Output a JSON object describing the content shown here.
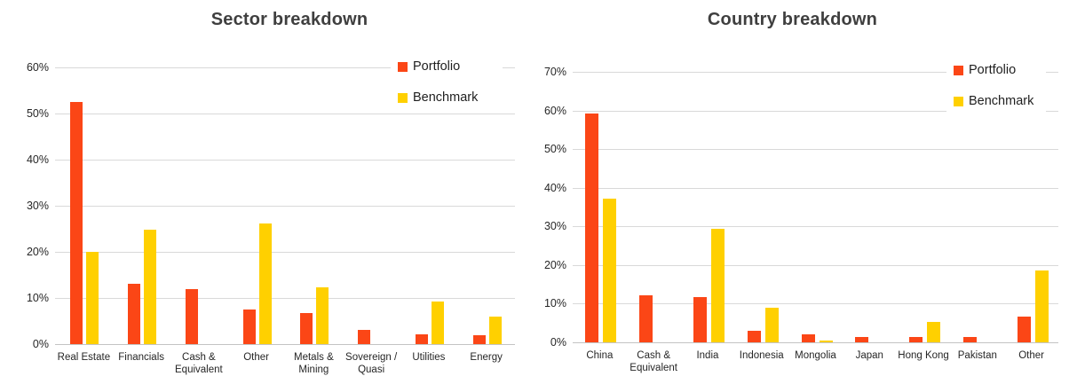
{
  "theme": {
    "background": "#ffffff",
    "grid_color": "#d9d9d9",
    "axis_color": "#c3c3c3",
    "title_color": "#3f3f3f",
    "text_color": "#262626",
    "portfolio_color": "#fb4616",
    "benchmark_color": "#ffd000"
  },
  "chart_data": [
    {
      "type": "bar",
      "title": "Sector breakdown",
      "categories": [
        "Real Estate",
        "Financials",
        "Cash &\nEquivalent",
        "Other",
        "Metals &\nMining",
        "Sovereign /\nQuasi",
        "Utilities",
        "Energy"
      ],
      "series": [
        {
          "name": "Portfolio",
          "color": "#fb4616",
          "values": [
            52.5,
            13.0,
            12.0,
            7.5,
            6.7,
            3.0,
            2.1,
            1.9
          ]
        },
        {
          "name": "Benchmark",
          "color": "#ffd000",
          "values": [
            20.0,
            24.8,
            0,
            26.1,
            12.4,
            0,
            9.2,
            5.9
          ]
        }
      ],
      "xlabel": "",
      "ylabel": "",
      "ylim": [
        0,
        60
      ],
      "yticks": [
        "0%",
        "10%",
        "20%",
        "30%",
        "40%",
        "50%",
        "60%"
      ],
      "grid": true,
      "legend_position": "top-right"
    },
    {
      "type": "bar",
      "title": "Country breakdown",
      "categories": [
        "China",
        "Cash &\nEquivalent",
        "India",
        "Indonesia",
        "Mongolia",
        "Japan",
        "Hong Kong",
        "Pakistan",
        "Other"
      ],
      "series": [
        {
          "name": "Portfolio",
          "color": "#fb4616",
          "values": [
            59.3,
            12.1,
            11.7,
            3.0,
            2.1,
            1.4,
            1.4,
            1.4,
            6.6
          ]
        },
        {
          "name": "Benchmark",
          "color": "#ffd000",
          "values": [
            37.1,
            0,
            29.3,
            8.9,
            0.5,
            0,
            5.2,
            0,
            18.6
          ]
        }
      ],
      "xlabel": "",
      "ylabel": "",
      "ylim": [
        0,
        70
      ],
      "yticks": [
        "0%",
        "10%",
        "20%",
        "30%",
        "40%",
        "50%",
        "60%",
        "70%"
      ],
      "grid": true,
      "legend_position": "top-right"
    }
  ]
}
